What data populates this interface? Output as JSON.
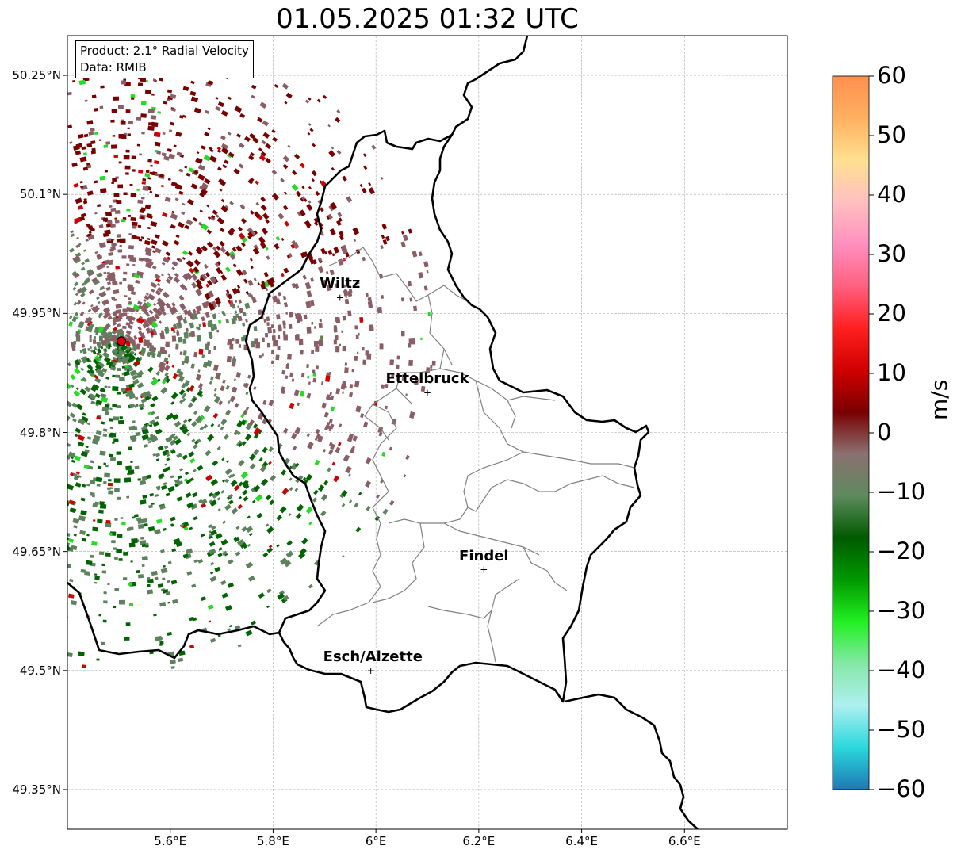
{
  "title": "01.05.2025 01:32 UTC",
  "info": {
    "product": "Product: 2.1° Radial Velocity",
    "data": "Data: RMIB"
  },
  "axes": {
    "lon_range": [
      5.4,
      6.8
    ],
    "lat_range": [
      49.3,
      50.3
    ],
    "x_ticks": [
      "5.6°E",
      "5.8°E",
      "6°E",
      "6.2°E",
      "6.4°E",
      "6.6°E"
    ],
    "y_ticks": [
      "50.25°N",
      "50.1°N",
      "49.95°N",
      "49.8°N",
      "49.65°N",
      "49.5°N",
      "49.35°N"
    ],
    "grid": true
  },
  "radar": {
    "lon": 5.505,
    "lat": 49.915,
    "marker_color": "#e00000"
  },
  "cities": [
    {
      "name": "Wiltz",
      "lon": 5.93,
      "lat": 49.97
    },
    {
      "name": "Ettelbruck",
      "lon": 6.1,
      "lat": 49.85
    },
    {
      "name": "Findel",
      "lon": 6.21,
      "lat": 49.627
    },
    {
      "name": "Esch/Alzette",
      "lon": 5.99,
      "lat": 49.5
    }
  ],
  "colorbar": {
    "label": "m/s",
    "range": [
      -60,
      60
    ],
    "ticks": [
      "60",
      "50",
      "40",
      "30",
      "20",
      "10",
      "0",
      "−10",
      "−20",
      "−30",
      "−40",
      "−50",
      "−60"
    ],
    "stops": [
      "#1f78b4",
      "#2ad8dc",
      "#aef0f0",
      "#86e8a8",
      "#22f022",
      "#009900",
      "#005a00",
      "#5e8a5e",
      "#8a7070",
      "#7a0000",
      "#d00000",
      "#ff2020",
      "#ff6080",
      "#ff90c0",
      "#ffc0c0",
      "#ffe090",
      "#ffb060",
      "#ff9050"
    ]
  },
  "colors": {
    "approaching_dark": "#006400",
    "approaching_gray": "#5d825d",
    "receding_gray": "#8b5e66",
    "receding_dark": "#7a0000",
    "border": "#000000",
    "canton_lines": "#808080"
  }
}
